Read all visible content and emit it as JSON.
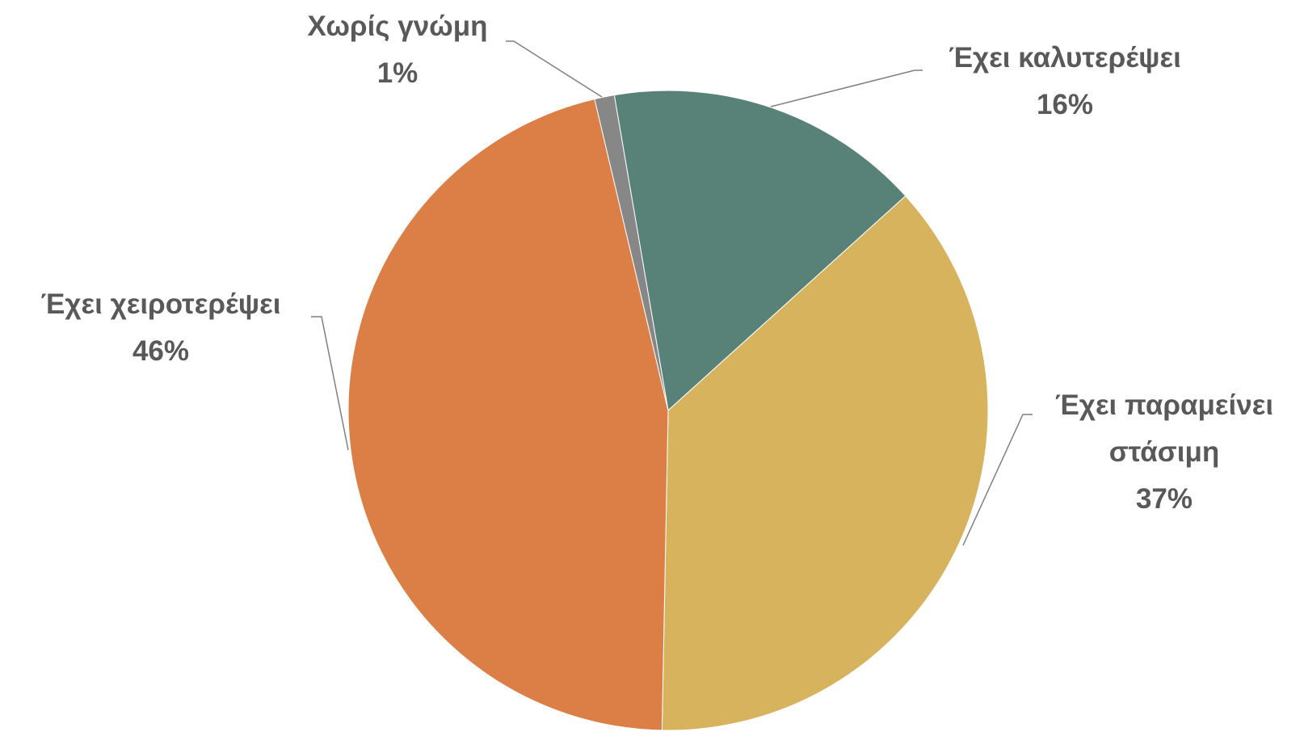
{
  "chart_data": {
    "type": "pie",
    "categories": [
      "Έχει καλυτερέψει",
      "Έχει παραμείνει στάσιμη",
      "Έχει χειροτερέψει",
      "Χωρίς γνώμη"
    ],
    "values": [
      16,
      37,
      46,
      1
    ],
    "value_labels": [
      "16%",
      "37%",
      "46%",
      "1%"
    ],
    "colors": [
      "#588178",
      "#d8b35e",
      "#dc7f47",
      "#878787"
    ]
  }
}
